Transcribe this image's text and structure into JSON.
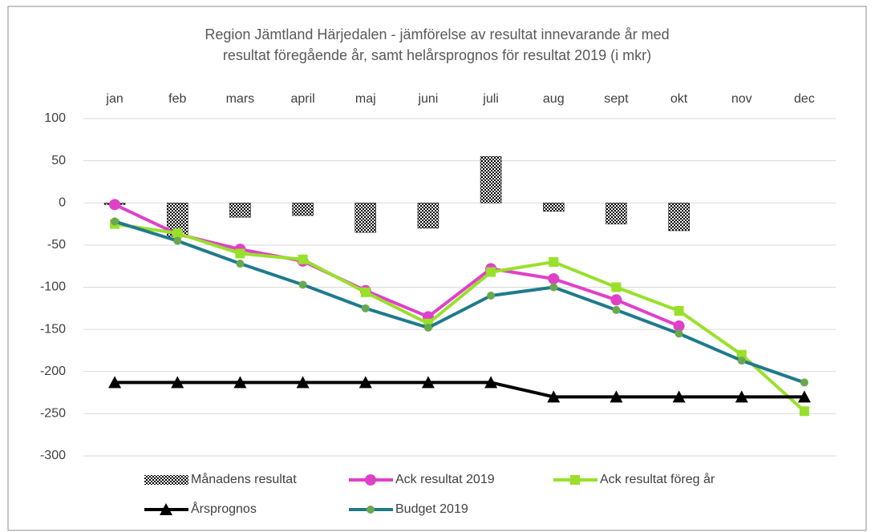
{
  "chart_data": {
    "type": "combo",
    "title": [
      "Region Jämtland Härjedalen - jämförelse av resultat innevarande år med",
      "resultat föregående år, samt helårsprognos för resultat 2019 (i mkr)"
    ],
    "categories": [
      "jan",
      "feb",
      "mars",
      "april",
      "maj",
      "juni",
      "juli",
      "aug",
      "sept",
      "okt",
      "nov",
      "dec"
    ],
    "ylim": [
      -300,
      100
    ],
    "yticks": [
      -300,
      -250,
      -200,
      -150,
      -100,
      -50,
      0,
      50,
      100
    ],
    "grid": true,
    "legend": "bottom",
    "series": [
      {
        "name": "Månadens resultat",
        "type": "bar",
        "color": "#000000",
        "values": [
          -2,
          -40,
          -17,
          -15,
          -35,
          -30,
          55,
          -10,
          -25,
          -33,
          null,
          null
        ]
      },
      {
        "name": "Ack resultat 2019",
        "type": "line",
        "marker": "circle",
        "color": "#e040c8",
        "values": [
          -2,
          -37,
          -55,
          -69,
          -104,
          -135,
          -78,
          -90,
          -115,
          -146,
          null,
          null
        ]
      },
      {
        "name": "Ack resultat föreg år",
        "type": "line",
        "marker": "square",
        "color": "#99e02a",
        "values": [
          -25,
          -36,
          -60,
          -67,
          -106,
          -143,
          -82,
          -70,
          -100,
          -128,
          -180,
          -247
        ]
      },
      {
        "name": "Årsprognos",
        "type": "line",
        "marker": "triangle",
        "color": "#000000",
        "values": [
          -213,
          -213,
          -213,
          -213,
          -213,
          -213,
          -213,
          -230,
          -230,
          -230,
          -230,
          -230
        ]
      },
      {
        "name": "Budget 2019",
        "type": "line",
        "marker": "dot",
        "color": "#1f7a8c",
        "values": [
          -22,
          -45,
          -72,
          -97,
          -125,
          -148,
          -110,
          -100,
          -127,
          -155,
          -187,
          -213
        ]
      }
    ]
  }
}
